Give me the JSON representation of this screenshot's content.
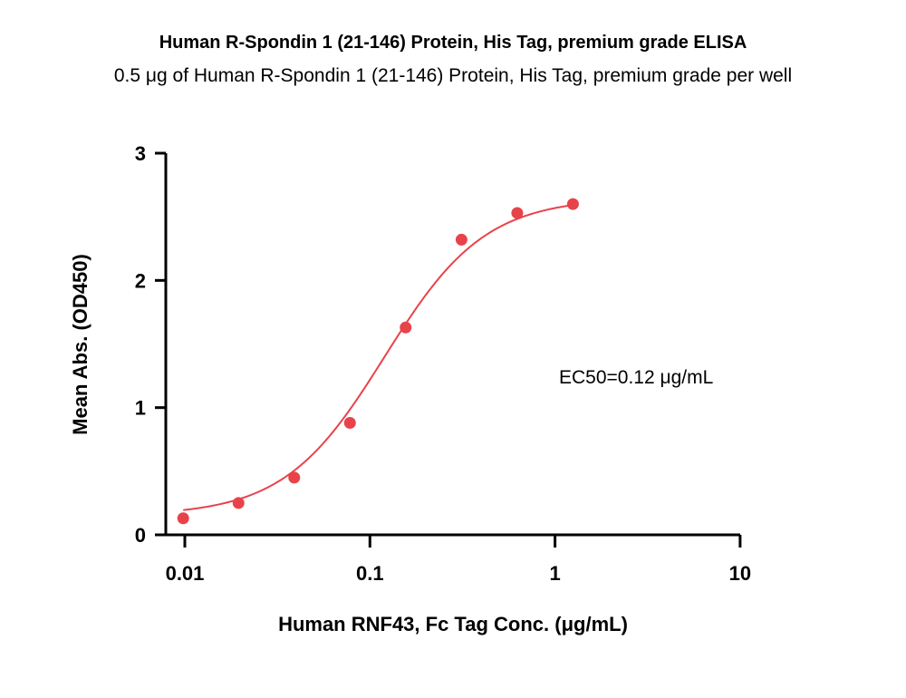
{
  "chart_data": {
    "type": "scatter",
    "title": "Human R-Spondin 1 (21-146) Protein, His Tag, premium grade ELISA",
    "subtitle": "0.5 μg of Human R-Spondin 1 (21-146) Protein, His Tag, premium grade per well",
    "xlabel": "Human RNF43, Fc Tag Conc. (μg/mL)",
    "ylabel": "Mean Abs. (OD450)",
    "x_scale": "log",
    "xlim": [
      0.0085,
      10
    ],
    "ylim": [
      0,
      3
    ],
    "x_ticks": [
      0.01,
      0.1,
      1,
      10
    ],
    "x_tick_labels": [
      "0.01",
      "0.1",
      "1",
      "10"
    ],
    "y_ticks": [
      0,
      1,
      2,
      3
    ],
    "y_tick_labels": [
      "0",
      "1",
      "2",
      "3"
    ],
    "grid": false,
    "series": [
      {
        "x": [
          0.0098,
          0.0195,
          0.039,
          0.078,
          0.156,
          0.3125,
          0.625,
          1.25
        ],
        "y": [
          0.13,
          0.25,
          0.45,
          0.88,
          1.63,
          2.32,
          2.53,
          2.6
        ],
        "color": "#e8434a",
        "marker": "circle",
        "fit_curve": {
          "model": "4PL",
          "bottom": 0.15,
          "top": 2.65,
          "ec50": 0.12,
          "hill": 1.6
        }
      }
    ],
    "annotations": [
      {
        "text": "EC50=0.12 μg/mL"
      }
    ]
  }
}
